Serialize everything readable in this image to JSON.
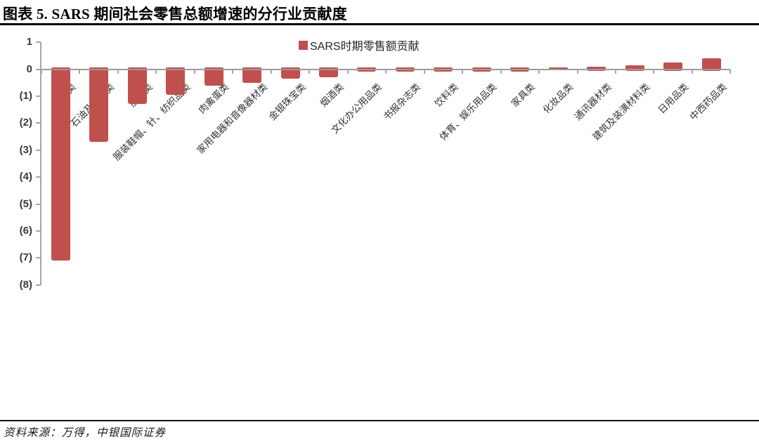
{
  "figure": {
    "title": "图表 5. SARS 期间社会零售总额增速的分行业贡献度",
    "source_note": "资料来源：万得，中银国际证券"
  },
  "colors": {
    "bar": "#C0504D",
    "axis": "#A6A6A6",
    "zero_line": "#9B9B9B"
  },
  "chart_data": {
    "type": "bar",
    "title": "",
    "xlabel": "",
    "ylabel": "",
    "legend": [
      "SARS时期零售额贡献"
    ],
    "legend_position": "top-center",
    "grid": false,
    "x_tick_rotation_deg": 45,
    "ylim": [
      -8,
      1
    ],
    "yticks": [
      1,
      0,
      -1,
      -2,
      -3,
      -4,
      -5,
      -6,
      -7,
      -8
    ],
    "ytick_labels": [
      "1",
      "0",
      "(1)",
      "(2)",
      "(3)",
      "(4)",
      "(5)",
      "(6)",
      "(7)",
      "(8)"
    ],
    "categories": [
      "汽车类",
      "石油及制品类",
      "服装类",
      "服装鞋帽、针、纺织品类",
      "肉禽蛋类",
      "家用电器和音像器材类",
      "金银珠宝类",
      "烟酒类",
      "文化办公用品类",
      "书报杂志类",
      "饮料类",
      "体育、娱乐用品类",
      "家具类",
      "化妆品类",
      "通讯器材类",
      "建筑及装潢材料类",
      "日用品类",
      "中西药品类"
    ],
    "values": [
      -7.1,
      -2.7,
      -1.3,
      -0.95,
      -0.6,
      -0.5,
      -0.35,
      -0.3,
      -0.1,
      -0.1,
      -0.1,
      -0.1,
      -0.08,
      -0.05,
      0.1,
      0.15,
      0.25,
      0.4
    ]
  }
}
